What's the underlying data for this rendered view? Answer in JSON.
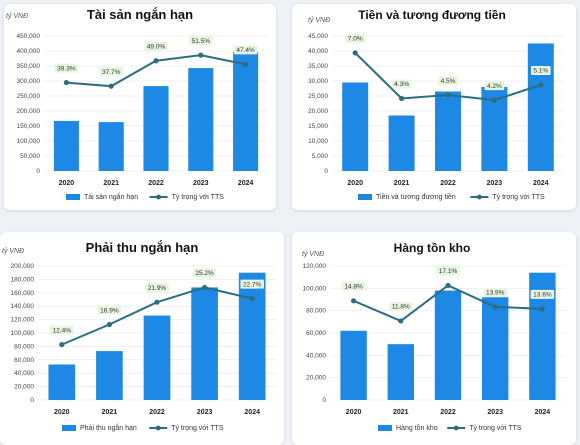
{
  "colors": {
    "bar": "#1e88e5",
    "line": "#2c6e7f",
    "label_bg": "#e8f5e0",
    "grid": "#e6e6e6"
  },
  "chart_data": [
    {
      "type": "bar",
      "title": "Tài sản ngắn hạn",
      "unit": "tỷ VNĐ",
      "categories": [
        "2020",
        "2021",
        "2022",
        "2023",
        "2024"
      ],
      "ylim": [
        0,
        450000
      ],
      "yticks": [
        "0",
        "50,000",
        "100,000",
        "150,000",
        "200,000",
        "250,000",
        "300,000",
        "350,000",
        "400,000",
        "450,000"
      ],
      "series": [
        {
          "name": "Tài sản ngắn hạn",
          "type": "bar",
          "values": [
            167000,
            163000,
            283000,
            343000,
            398000
          ]
        },
        {
          "name": "Tỷ trọng với TTS",
          "type": "line",
          "values": [
            39.3,
            37.7,
            49.0,
            51.5,
            47.4
          ],
          "labels": [
            "39.3%",
            "37.7%",
            "49.0%",
            "51.5%",
            "47.4%"
          ],
          "yrange": [
            0,
            60
          ]
        }
      ],
      "legend": "bottom"
    },
    {
      "type": "bar",
      "title": "Tiền và tương đương tiền",
      "unit": "tỷ VNĐ",
      "categories": [
        "2020",
        "2021",
        "2022",
        "2023",
        "2024"
      ],
      "ylim": [
        0,
        45000
      ],
      "yticks": [
        "0",
        "5,000",
        "10,000",
        "15,000",
        "20,000",
        "25,000",
        "30,000",
        "35,000",
        "40,000",
        "45,000"
      ],
      "series": [
        {
          "name": "Tiền và tương đương tiền",
          "type": "bar",
          "values": [
            29500,
            18500,
            26500,
            28000,
            42500
          ]
        },
        {
          "name": "Tỷ trọng với TTS",
          "type": "line",
          "values": [
            7.0,
            4.3,
            4.5,
            4.2,
            5.1
          ],
          "labels": [
            "7.0%",
            "4.3%",
            "4.5%",
            "4.2%",
            "5.1%"
          ],
          "yrange": [
            0,
            8
          ]
        }
      ],
      "legend": "bottom"
    },
    {
      "type": "bar",
      "title": "Phải thu ngắn hạn",
      "unit": "tỷ VNĐ",
      "categories": [
        "2020",
        "2021",
        "2022",
        "2023",
        "2024"
      ],
      "ylim": [
        0,
        200000
      ],
      "yticks": [
        "0",
        "20,000",
        "40,000",
        "60,000",
        "80,000",
        "100,000",
        "120,000",
        "140,000",
        "160,000",
        "180,000",
        "200,000"
      ],
      "series": [
        {
          "name": "Phải thu ngắn hạn",
          "type": "bar",
          "values": [
            53000,
            73000,
            126000,
            168000,
            190000
          ]
        },
        {
          "name": "Tỷ trọng với TTS",
          "type": "line",
          "values": [
            12.4,
            16.9,
            21.9,
            25.2,
            22.7
          ],
          "labels": [
            "12.4%",
            "16.9%",
            "21.9%",
            "25.2%",
            "22.7%"
          ],
          "yrange": [
            0,
            30
          ]
        }
      ],
      "legend": "bottom"
    },
    {
      "type": "bar",
      "title": "Hàng tồn kho",
      "unit": "tỷ VNĐ",
      "categories": [
        "2020",
        "2021",
        "2022",
        "2023",
        "2024"
      ],
      "ylim": [
        0,
        120000
      ],
      "yticks": [
        "0",
        "20,000",
        "40,000",
        "60,000",
        "80,000",
        "100,000",
        "120,000"
      ],
      "series": [
        {
          "name": "Hàng tồn kho",
          "type": "bar",
          "values": [
            62000,
            50000,
            98000,
            92000,
            114000
          ]
        },
        {
          "name": "Tỷ trọng với TTS",
          "type": "line",
          "values": [
            14.8,
            11.8,
            17.1,
            13.9,
            13.6
          ],
          "labels": [
            "14.8%",
            "11.8%",
            "17.1%",
            "13.9%",
            "13.6%"
          ],
          "yrange": [
            0,
            20
          ]
        }
      ],
      "legend": "bottom"
    }
  ]
}
